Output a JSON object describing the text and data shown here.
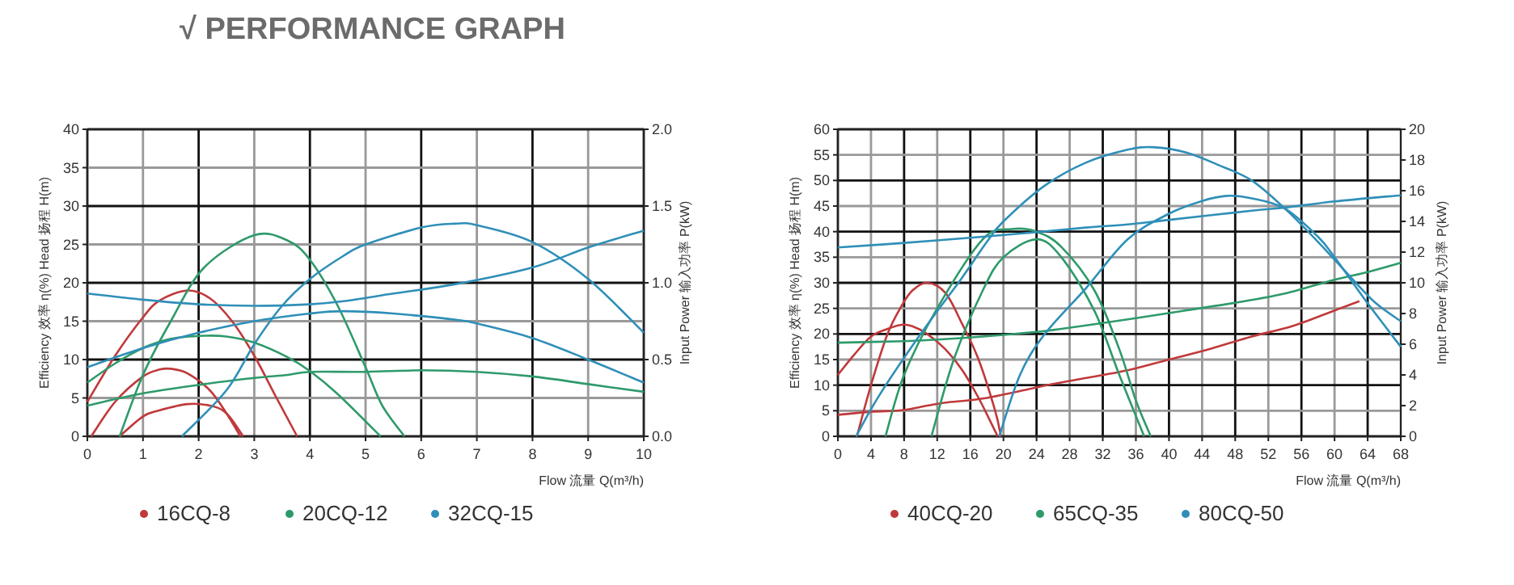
{
  "chart_data": [
    {
      "type": "line",
      "title": "√ PERFORMANCE GRAPH",
      "xlabel": "Flow 流量 Q(m³/h)",
      "ylabel": "Efficiency 效率 η(%)   Head 扬程 H(m)",
      "y2label": "Input Power 输入功率 P(kW)",
      "xlim": [
        0,
        10
      ],
      "xticks": [
        0,
        1,
        2,
        3,
        4,
        5,
        6,
        7,
        8,
        9,
        10
      ],
      "ylim": [
        0,
        40
      ],
      "yticks": [
        0,
        5,
        10,
        15,
        20,
        25,
        30,
        35,
        40
      ],
      "y2lim": [
        0,
        2
      ],
      "y2ticks": [
        {
          "value": 0,
          "label": "0.0"
        },
        {
          "value": 0.5,
          "label": "0.5"
        },
        {
          "value": 1,
          "label": "1.0"
        },
        {
          "value": 1.5,
          "label": "1.5"
        },
        {
          "value": 2,
          "label": "2.0"
        }
      ],
      "grid": true,
      "legend": "bottom",
      "series": [
        {
          "name": "16CQ-8",
          "color": "#c0393b",
          "x": [
            0,
            0.5,
            1,
            1.3,
            1.8,
            2.2,
            2.6,
            3,
            3.4,
            3.77
          ],
          "values": [
            4.5,
            10.5,
            15.5,
            17.7,
            19,
            18,
            15,
            10.5,
            5,
            0
          ]
        },
        {
          "color": "#c0393b",
          "x": [
            0.07,
            0.5,
            1,
            1.3,
            1.5,
            1.8,
            2.2,
            2.5,
            2.75
          ],
          "values": [
            0,
            4.5,
            7.8,
            8.7,
            8.8,
            8.2,
            6,
            3,
            0
          ]
        },
        {
          "color": "#c0393b",
          "axis": "y2",
          "x": [
            0.58,
            1,
            1.3,
            1.8,
            2.2,
            2.5,
            2.8
          ],
          "values": [
            0,
            0.13,
            0.17,
            0.21,
            0.2,
            0.15,
            0
          ]
        },
        {
          "name": "20CQ-12",
          "color": "#2e9a6a",
          "x": [
            0.58,
            1,
            1.5,
            2.1,
            3,
            3.6,
            4,
            4.5,
            5,
            5.3,
            5.7
          ],
          "values": [
            0,
            8,
            15,
            22,
            26.2,
            25.5,
            23,
            17,
            9,
            4,
            0
          ]
        },
        {
          "color": "#2e9a6a",
          "x": [
            0,
            0.5,
            1,
            1.5,
            2.1,
            2.5,
            3,
            3.6,
            4,
            4.5,
            5.27
          ],
          "values": [
            7,
            9.5,
            11.5,
            12.7,
            13.1,
            13,
            12.2,
            10.3,
            8.5,
            5.5,
            0
          ]
        },
        {
          "color": "#2e9a6a",
          "axis": "y2",
          "x": [
            0,
            1,
            2.1,
            3,
            3.6,
            4,
            5,
            6,
            7,
            8,
            9,
            10
          ],
          "values": [
            0.2,
            0.28,
            0.34,
            0.38,
            0.4,
            0.42,
            0.42,
            0.43,
            0.42,
            0.39,
            0.34,
            0.29
          ]
        },
        {
          "name": "32CQ-15",
          "color": "#2f8fb8",
          "x": [
            1.7,
            2.5,
            3,
            3.5,
            4,
            4.6,
            5,
            6,
            6.6,
            7,
            8,
            9,
            10
          ],
          "values": [
            0,
            6,
            12,
            17,
            20.5,
            23.5,
            25,
            27.2,
            27.7,
            27.5,
            25.3,
            20.5,
            13.5
          ]
        },
        {
          "color": "#2f8fb8",
          "x": [
            0,
            1,
            2,
            3,
            4,
            4.6,
            5.5,
            6.6,
            7,
            8,
            9,
            10
          ],
          "values": [
            9,
            11.5,
            13.5,
            15,
            16,
            16.3,
            16,
            15.2,
            14.7,
            12.8,
            10,
            7
          ]
        },
        {
          "color": "#2f8fb8",
          "axis": "y2",
          "x": [
            0,
            1,
            2,
            3,
            4,
            4.6,
            5.5,
            6.6,
            8,
            9,
            10
          ],
          "values": [
            0.93,
            0.89,
            0.86,
            0.85,
            0.86,
            0.88,
            0.93,
            0.99,
            1.1,
            1.23,
            1.34
          ]
        }
      ]
    },
    {
      "type": "line",
      "xlabel": "Flow 流量 Q(m³/h)",
      "ylabel": "Efficiency 效率 η(%)   Head 扬程 H(m)",
      "y2label": "Input Power 输入功率 P(kW)",
      "xlim": [
        0,
        68
      ],
      "xticks": [
        0,
        4,
        8,
        12,
        16,
        20,
        24,
        28,
        32,
        36,
        40,
        44,
        48,
        52,
        56,
        60,
        64,
        68
      ],
      "ylim": [
        0,
        60
      ],
      "yticks": [
        0,
        5,
        10,
        15,
        20,
        25,
        30,
        35,
        40,
        45,
        50,
        55,
        60
      ],
      "y2lim": [
        0,
        20
      ],
      "y2ticks": [
        0,
        2,
        4,
        6,
        8,
        10,
        12,
        14,
        16,
        18,
        20
      ],
      "grid": true,
      "legend": "bottom",
      "series": [
        {
          "name": "40CQ-20",
          "color": "#c0393b",
          "x": [
            2.3,
            4,
            6,
            7.7,
            9,
            10.8,
            13,
            15,
            17,
            19,
            19.7
          ],
          "values": [
            0,
            10,
            20,
            25.5,
            28.5,
            30,
            28,
            22,
            15,
            5,
            0
          ]
        },
        {
          "color": "#c0393b",
          "x": [
            0,
            2,
            4,
            6,
            7.7,
            9,
            10.8,
            13,
            15,
            17,
            19,
            19.3
          ],
          "values": [
            12,
            16,
            19.5,
            21,
            21.8,
            21.5,
            20,
            17,
            13,
            7.5,
            1,
            0
          ]
        },
        {
          "color": "#c0393b",
          "axis": "y2",
          "x": [
            0,
            4,
            7.7,
            10.8,
            13,
            18,
            25,
            30,
            35,
            40,
            45,
            50,
            55,
            60,
            63
          ],
          "values": [
            1.4,
            1.6,
            1.7,
            2,
            2.2,
            2.5,
            3.3,
            3.8,
            4.3,
            5,
            5.7,
            6.5,
            7.2,
            8.2,
            8.8
          ]
        },
        {
          "name": "65CQ-35",
          "color": "#2e9a6a",
          "x": [
            5.75,
            8,
            12,
            17.5,
            21,
            24,
            27,
            31,
            34,
            36,
            37.8
          ],
          "values": [
            0,
            12,
            25,
            38.5,
            40.5,
            40,
            37,
            28.5,
            17,
            7,
            0
          ]
        },
        {
          "color": "#2e9a6a",
          "x": [
            11.3,
            14,
            17.5,
            20,
            24,
            27,
            31,
            34,
            37
          ],
          "values": [
            0,
            15,
            28.5,
            35,
            38.5,
            35,
            24.5,
            12,
            0
          ]
        },
        {
          "color": "#2e9a6a",
          "axis": "y2",
          "x": [
            0,
            8,
            12,
            17.5,
            24,
            27,
            31,
            36,
            42,
            48,
            54,
            60,
            64,
            68
          ],
          "values": [
            6.1,
            6.2,
            6.3,
            6.5,
            6.8,
            7,
            7.3,
            7.7,
            8.2,
            8.7,
            9.3,
            10.2,
            10.7,
            11.3
          ]
        },
        {
          "name": "80CQ-50",
          "color": "#2f8fb8",
          "x": [
            2.2,
            5,
            10,
            15,
            18,
            20,
            25,
            30,
            35,
            38,
            42,
            46,
            50,
            54,
            58,
            62,
            65,
            68
          ],
          "values": [
            0,
            8,
            20,
            31,
            38,
            42,
            49,
            53.5,
            56,
            56.5,
            55.5,
            53,
            50,
            44.5,
            38,
            31,
            26,
            22.5
          ]
        },
        {
          "color": "#2f8fb8",
          "x": [
            19.5,
            22,
            25,
            30,
            35,
            40,
            44,
            47,
            50,
            54,
            58,
            60,
            64,
            68
          ],
          "values": [
            0,
            12,
            20,
            29,
            38.5,
            43.5,
            46,
            47,
            46.5,
            44.5,
            39,
            35,
            26,
            17.5
          ]
        },
        {
          "color": "#2f8fb8",
          "axis": "y2",
          "x": [
            0,
            8,
            17.5,
            24,
            30,
            35,
            40,
            50,
            54,
            60,
            68
          ],
          "values": [
            12.3,
            12.6,
            13,
            13.3,
            13.6,
            13.8,
            14.1,
            14.7,
            14.9,
            15.3,
            15.7
          ]
        }
      ]
    }
  ]
}
